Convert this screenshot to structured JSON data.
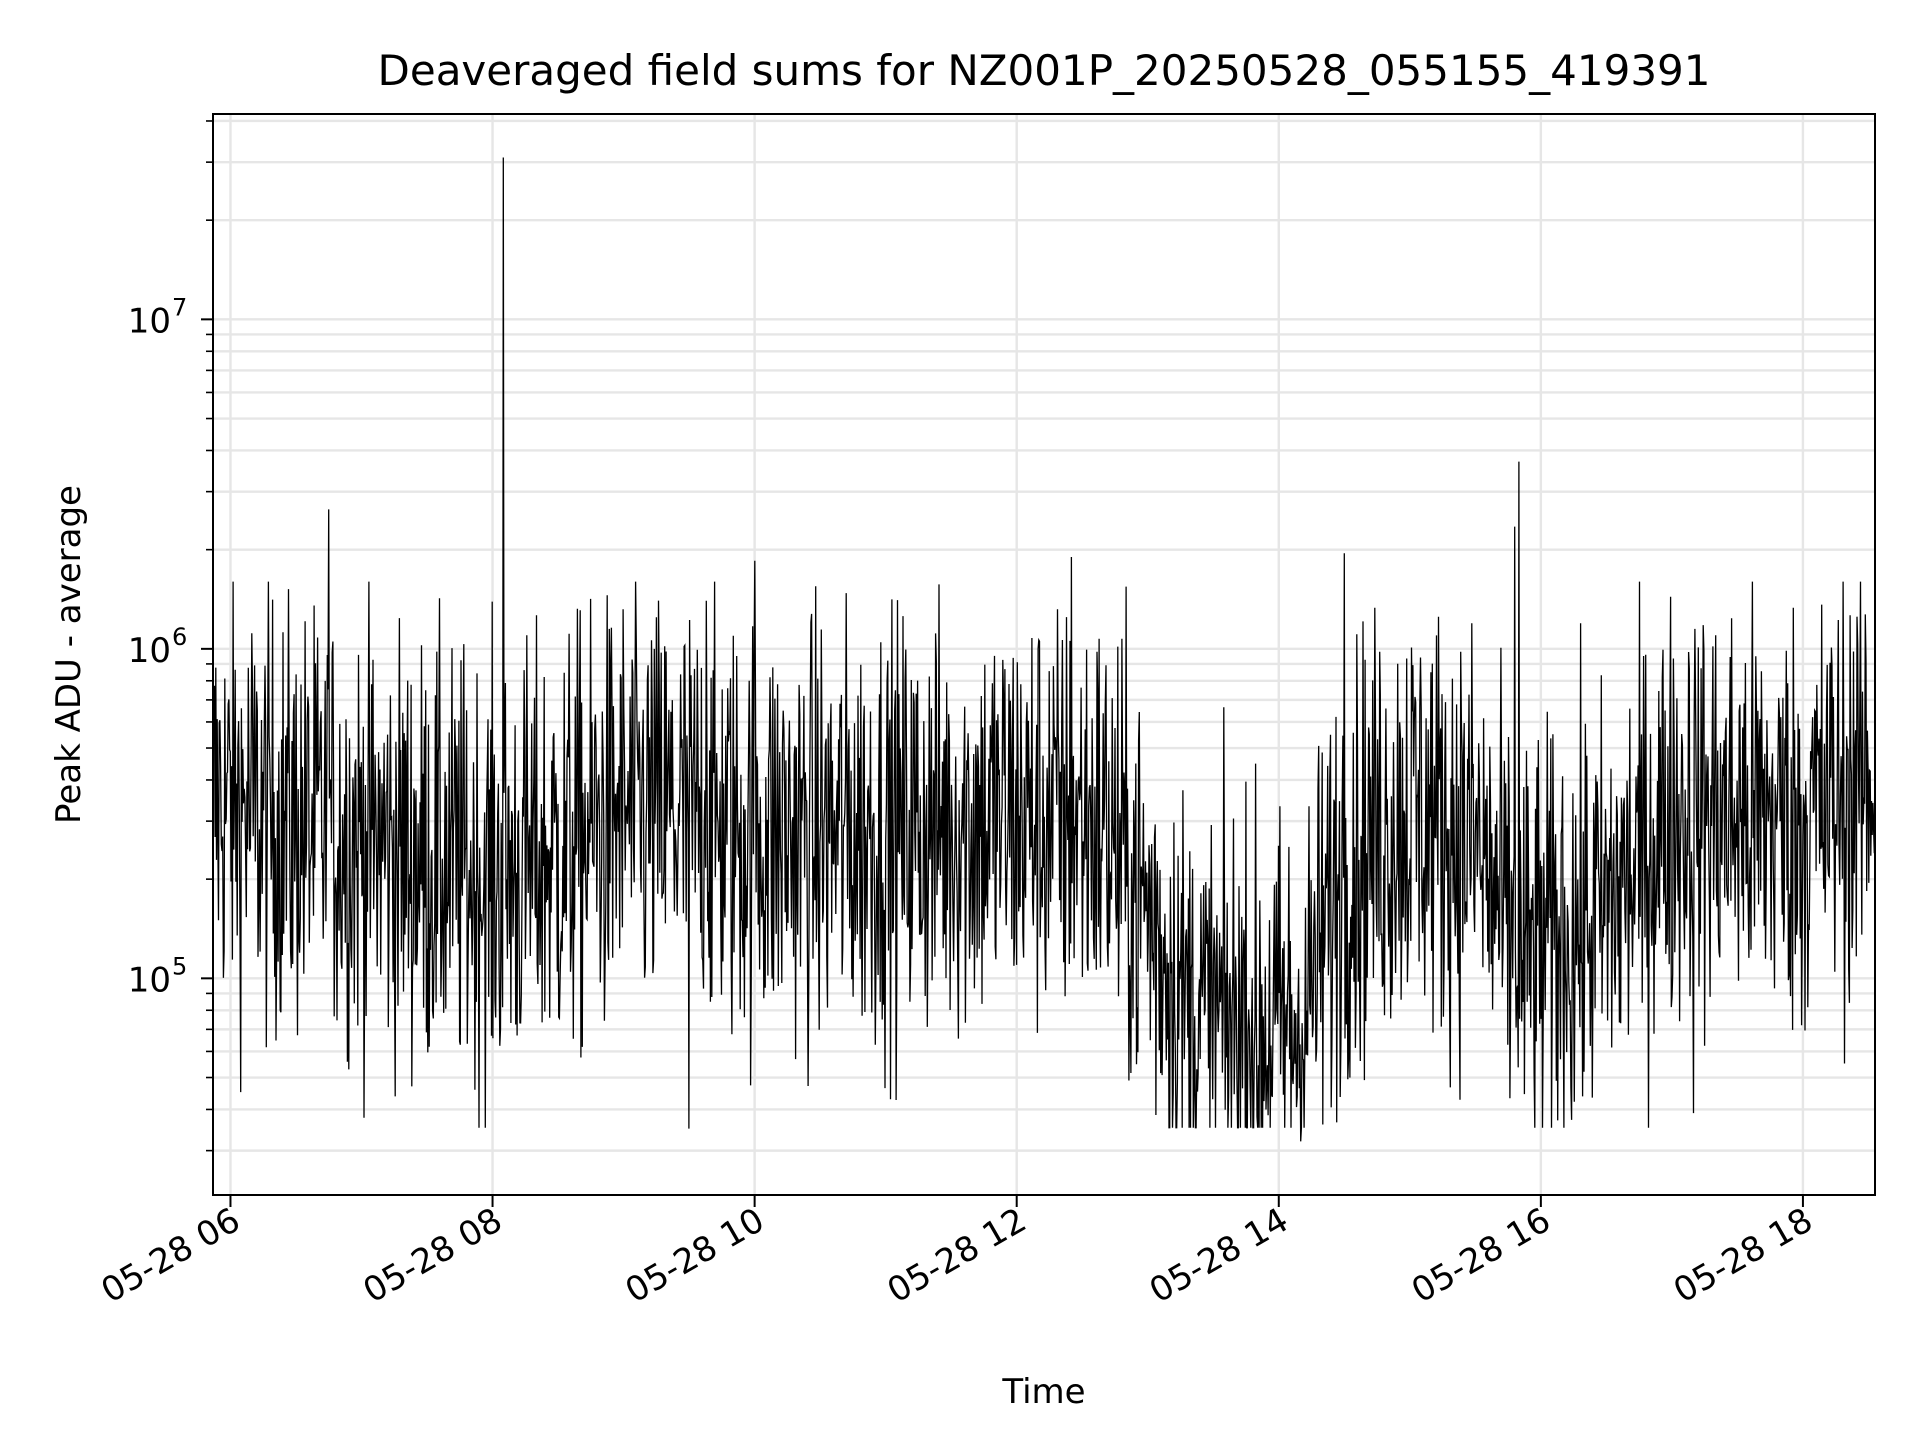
{
  "chart_data": {
    "type": "line",
    "title": "Deaveraged field sums for NZ001P_20250528_055155_419391",
    "xlabel": "Time",
    "ylabel": "Peak ADU - average",
    "x_type": "datetime",
    "xlim": [
      "2025-05-28T05:52:00",
      "2025-05-28T18:33:00"
    ],
    "ylim": [
      22000,
      42000000
    ],
    "y_scale": "log",
    "grid": true,
    "grid_minor": true,
    "line_color": "#000000",
    "x_ticks": [
      {
        "value": "2025-05-28T06:00:00",
        "label": "05-28 06"
      },
      {
        "value": "2025-05-28T08:00:00",
        "label": "05-28 08"
      },
      {
        "value": "2025-05-28T10:00:00",
        "label": "05-28 10"
      },
      {
        "value": "2025-05-28T12:00:00",
        "label": "05-28 12"
      },
      {
        "value": "2025-05-28T14:00:00",
        "label": "05-28 14"
      },
      {
        "value": "2025-05-28T16:00:00",
        "label": "05-28 16"
      },
      {
        "value": "2025-05-28T18:00:00",
        "label": "05-28 18"
      }
    ],
    "y_ticks": [
      {
        "value": 100000,
        "base": "10",
        "exp": "5"
      },
      {
        "value": 1000000,
        "base": "10",
        "exp": "6"
      },
      {
        "value": 10000000,
        "base": "10",
        "exp": "7"
      }
    ],
    "series": [
      {
        "style": "line",
        "start": "2025-05-28T05:52:00",
        "end": "2025-05-28T18:33:00",
        "baseline": [
          [
            "2025-05-28T05:52:00",
            350000
          ],
          [
            "2025-05-28T06:30:00",
            290000
          ],
          [
            "2025-05-28T07:00:00",
            270000
          ],
          [
            "2025-05-28T07:30:00",
            230000
          ],
          [
            "2025-05-28T08:00:00",
            200000
          ],
          [
            "2025-05-28T08:30:00",
            240000
          ],
          [
            "2025-05-28T09:00:00",
            320000
          ],
          [
            "2025-05-28T09:30:00",
            310000
          ],
          [
            "2025-05-28T10:00:00",
            270000
          ],
          [
            "2025-05-28T11:00:00",
            280000
          ],
          [
            "2025-05-28T12:00:00",
            310000
          ],
          [
            "2025-05-28T12:40:00",
            300000
          ],
          [
            "2025-05-28T13:00:00",
            160000
          ],
          [
            "2025-05-28T13:20:00",
            75000
          ],
          [
            "2025-05-28T14:10:00",
            70000
          ],
          [
            "2025-05-28T14:30:00",
            230000
          ],
          [
            "2025-05-28T15:00:00",
            330000
          ],
          [
            "2025-05-28T15:30:00",
            260000
          ],
          [
            "2025-05-28T15:50:00",
            110000
          ],
          [
            "2025-05-28T16:30:00",
            160000
          ],
          [
            "2025-05-28T17:00:00",
            320000
          ],
          [
            "2025-05-28T18:00:00",
            300000
          ],
          [
            "2025-05-28T18:33:00",
            420000
          ]
        ],
        "peaks": [
          [
            "2025-05-28T06:45:00",
            2650000
          ],
          [
            "2025-05-28T08:05:00",
            31000000
          ],
          [
            "2025-05-28T10:00:00",
            1850000
          ],
          [
            "2025-05-28T12:25:00",
            1900000
          ],
          [
            "2025-05-28T14:30:00",
            1950000
          ],
          [
            "2025-05-28T15:50:00",
            3700000
          ],
          [
            "2025-05-28T15:48:00",
            2350000
          ],
          [
            "2025-05-28T09:38:00",
            1400000
          ]
        ],
        "troughs": [
          [
            "2025-05-28T09:30:00",
            35000
          ],
          [
            "2025-05-28T14:10:00",
            32000
          ],
          [
            "2025-05-28T13:50:00",
            38000
          ],
          [
            "2025-05-28T17:10:00",
            39000
          ]
        ]
      }
    ]
  }
}
